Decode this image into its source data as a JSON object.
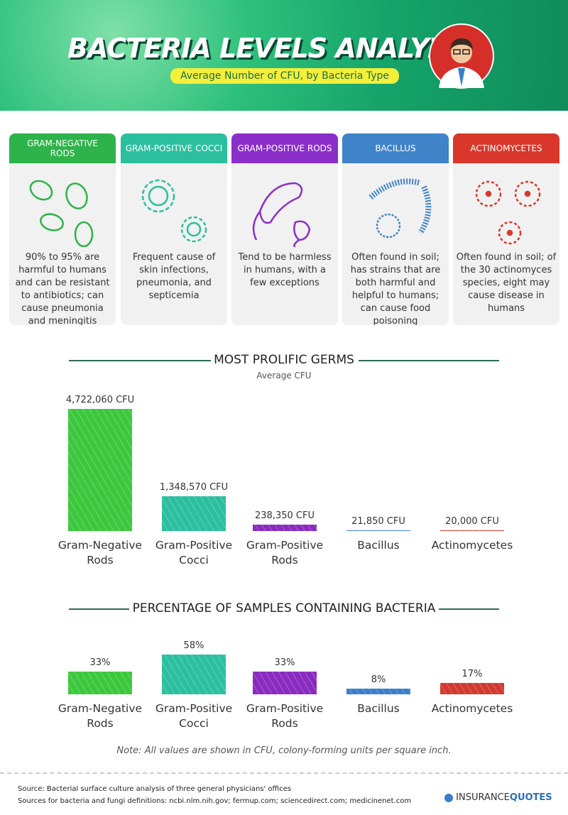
{
  "header": {
    "title": "BACTERIA LEVELS ANALYZED",
    "subtitle": "Average Number of CFU, by Bacteria Type"
  },
  "cards": [
    {
      "title": "GRAM-NEGATIVE RODS",
      "color": "#2db34a",
      "text": "90% to 95% are harmful to humans and can be resistant to antibiotics; can cause pneumonia and meningitis"
    },
    {
      "title": "GRAM-POSITIVE COCCI",
      "color": "#2cbf9e",
      "text": "Frequent cause of skin infections, pneumonia, and septicemia"
    },
    {
      "title": "GRAM-POSITIVE RODS",
      "color": "#8b2fc9",
      "text": "Tend to be harmless in humans, with a few exceptions"
    },
    {
      "title": "BACILLUS",
      "color": "#3f83c9",
      "text": "Often found in soil; has strains that are both harmful and helpful to humans; can cause food poisoning"
    },
    {
      "title": "ACTINOMYCETES",
      "color": "#d9372b",
      "text": "Often found in soil; of the 30 actinomyces species, eight may cause disease in humans"
    }
  ],
  "chart_data": [
    {
      "type": "bar",
      "title": "MOST PROLIFIC GERMS",
      "subtitle": "Average CFU",
      "categories": [
        "Gram-Negative Rods",
        "Gram-Positive Cocci",
        "Gram-Positive Rods",
        "Bacillus",
        "Actinomycetes"
      ],
      "values": [
        4722060,
        1348570,
        238350,
        21850,
        20000
      ],
      "value_labels": [
        "4,722,060 CFU",
        "1,348,570 CFU",
        "238,350 CFU",
        "21,850 CFU",
        "20,000 CFU"
      ],
      "colors": [
        "#3cc83c",
        "#2bbf9f",
        "#8a2bc0",
        "#3a7ec8",
        "#d23a2f"
      ]
    },
    {
      "type": "bar",
      "title": "PERCENTAGE OF SAMPLES CONTAINING BACTERIA",
      "categories": [
        "Gram-Negative Rods",
        "Gram-Positive Cocci",
        "Gram-Positive Rods",
        "Bacillus",
        "Actinomycetes"
      ],
      "values": [
        33,
        58,
        33,
        8,
        17
      ],
      "value_labels": [
        "33%",
        "58%",
        "33%",
        "8%",
        "17%"
      ],
      "colors": [
        "#3cc83c",
        "#2bbf9f",
        "#8a2bc0",
        "#3a7ec8",
        "#d23a2f"
      ]
    }
  ],
  "note": "Note: All values are shown in CFU, colony-forming units per square inch.",
  "footer": {
    "source": "Source: Bacterial surface culture analysis of three general physicians' offices",
    "definitions": "Sources for bacteria and fungi definitions: ncbi.nlm.nih.gov; fermup.com; sciencedirect.com; medicinenet.com",
    "logo_a": "INSURANCE",
    "logo_b": "QUOTES"
  }
}
